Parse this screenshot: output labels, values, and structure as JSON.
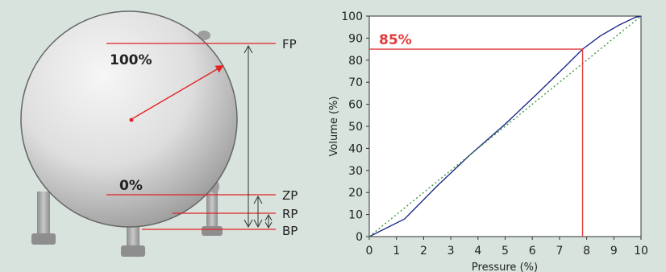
{
  "tank": {
    "full_label": "100%",
    "zero_label": "0%",
    "markers": {
      "fp": "FP",
      "zp": "ZP",
      "rp": "RP",
      "bp": "BP"
    }
  },
  "chart_data": {
    "type": "line",
    "xlabel": "Pressure (%)",
    "ylabel": "Volume (%)",
    "xlim": [
      0,
      10
    ],
    "ylim": [
      0,
      100
    ],
    "xticks": [
      0,
      1,
      2,
      3,
      4,
      5,
      6,
      7,
      8,
      9,
      10
    ],
    "yticks": [
      0,
      10,
      20,
      30,
      40,
      50,
      60,
      70,
      80,
      90,
      100
    ],
    "grid": false,
    "series": [
      {
        "style": "solid",
        "color": "#1f2a8a",
        "x": [
          0,
          1.3,
          2.5,
          3.7,
          5.0,
          6.2,
          7.2,
          7.85,
          8.5,
          9.2,
          9.8,
          10
        ],
        "y": [
          0,
          8,
          23,
          37,
          51,
          65,
          77,
          85,
          91,
          96,
          99.5,
          100
        ]
      },
      {
        "style": "dotted",
        "color": "#3c9a3c",
        "x": [
          0,
          10
        ],
        "y": [
          0,
          100
        ]
      }
    ],
    "annotation": {
      "label": "85%",
      "x": 7.85,
      "y": 85,
      "color": "#e23a3a"
    }
  }
}
